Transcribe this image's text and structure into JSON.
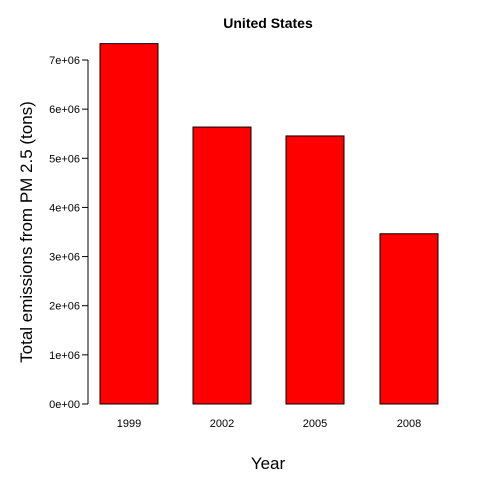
{
  "chart_data": {
    "type": "bar",
    "title": "United States",
    "xlabel": "Year",
    "ylabel": "Total emissions from PM 2.5 (tons)",
    "categories": [
      "1999",
      "2002",
      "2005",
      "2008"
    ],
    "values": [
      7332967,
      5635780,
      5454703,
      3464206
    ],
    "ylim": [
      0,
      7000000
    ],
    "yticks": [
      0,
      1000000,
      2000000,
      3000000,
      4000000,
      5000000,
      6000000,
      7000000
    ],
    "ytick_labels": [
      "0e+00",
      "1e+06",
      "2e+06",
      "3e+06",
      "4e+06",
      "5e+06",
      "6e+06",
      "7e+06"
    ],
    "grid": false,
    "bar_color": "#ff0000",
    "bar_border_color": "#000000"
  }
}
